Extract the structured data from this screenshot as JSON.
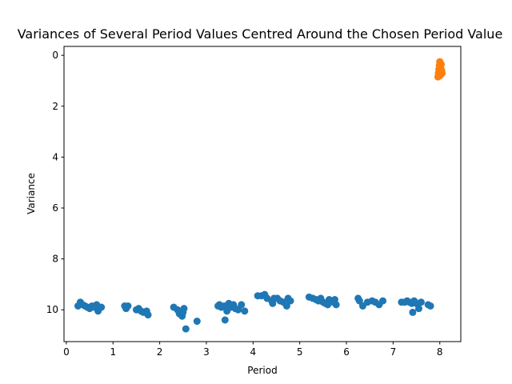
{
  "chart_data": {
    "type": "scatter",
    "title": "Variances of Several Period Values Centred Around the Chosen Period Value",
    "xlabel": "Period",
    "ylabel": "Variance",
    "xlim": [
      -0.05,
      8.45
    ],
    "ylim": [
      11.25,
      -0.35
    ],
    "y_inverted": true,
    "grid": false,
    "legend": "none",
    "xticks": [
      0,
      1,
      2,
      3,
      4,
      5,
      6,
      7,
      8
    ],
    "yticks": [
      0,
      2,
      4,
      6,
      8,
      10
    ],
    "series": [
      {
        "color": "#1f77b4",
        "points": [
          [
            0.25,
            9.85
          ],
          [
            0.3,
            9.7
          ],
          [
            0.35,
            9.8
          ],
          [
            0.4,
            9.85
          ],
          [
            0.45,
            9.9
          ],
          [
            0.5,
            9.95
          ],
          [
            0.55,
            9.85
          ],
          [
            0.6,
            9.9
          ],
          [
            0.65,
            9.8
          ],
          [
            0.68,
            10.05
          ],
          [
            0.75,
            9.9
          ],
          [
            1.25,
            9.85
          ],
          [
            1.28,
            9.95
          ],
          [
            1.32,
            9.85
          ],
          [
            1.5,
            10.0
          ],
          [
            1.55,
            9.95
          ],
          [
            1.6,
            10.05
          ],
          [
            1.65,
            10.1
          ],
          [
            1.72,
            10.05
          ],
          [
            1.75,
            10.2
          ],
          [
            2.3,
            9.9
          ],
          [
            2.38,
            10.0
          ],
          [
            2.42,
            10.15
          ],
          [
            2.48,
            10.25
          ],
          [
            2.5,
            10.1
          ],
          [
            2.52,
            9.95
          ],
          [
            2.56,
            10.75
          ],
          [
            2.8,
            10.45
          ],
          [
            3.25,
            9.85
          ],
          [
            3.28,
            9.8
          ],
          [
            3.32,
            9.9
          ],
          [
            3.38,
            9.85
          ],
          [
            3.4,
            10.4
          ],
          [
            3.44,
            10.05
          ],
          [
            3.48,
            9.75
          ],
          [
            3.52,
            9.9
          ],
          [
            3.58,
            9.8
          ],
          [
            3.62,
            9.95
          ],
          [
            3.68,
            10.0
          ],
          [
            3.75,
            9.8
          ],
          [
            3.82,
            10.05
          ],
          [
            4.1,
            9.45
          ],
          [
            4.18,
            9.45
          ],
          [
            4.25,
            9.4
          ],
          [
            4.3,
            9.55
          ],
          [
            4.4,
            9.65
          ],
          [
            4.42,
            9.75
          ],
          [
            4.45,
            9.55
          ],
          [
            4.52,
            9.55
          ],
          [
            4.58,
            9.65
          ],
          [
            4.65,
            9.7
          ],
          [
            4.72,
            9.85
          ],
          [
            4.75,
            9.55
          ],
          [
            4.8,
            9.65
          ],
          [
            5.2,
            9.5
          ],
          [
            5.28,
            9.55
          ],
          [
            5.35,
            9.6
          ],
          [
            5.4,
            9.65
          ],
          [
            5.45,
            9.55
          ],
          [
            5.5,
            9.7
          ],
          [
            5.55,
            9.75
          ],
          [
            5.6,
            9.8
          ],
          [
            5.63,
            9.6
          ],
          [
            5.68,
            9.65
          ],
          [
            5.72,
            9.7
          ],
          [
            5.75,
            9.6
          ],
          [
            5.78,
            9.8
          ],
          [
            6.25,
            9.55
          ],
          [
            6.28,
            9.65
          ],
          [
            6.35,
            9.85
          ],
          [
            6.45,
            9.7
          ],
          [
            6.55,
            9.65
          ],
          [
            6.62,
            9.7
          ],
          [
            6.7,
            9.8
          ],
          [
            6.78,
            9.65
          ],
          [
            7.18,
            9.7
          ],
          [
            7.25,
            9.7
          ],
          [
            7.3,
            9.65
          ],
          [
            7.35,
            9.7
          ],
          [
            7.4,
            9.75
          ],
          [
            7.42,
            10.1
          ],
          [
            7.45,
            9.65
          ],
          [
            7.5,
            9.75
          ],
          [
            7.55,
            9.95
          ],
          [
            7.6,
            9.7
          ],
          [
            7.75,
            9.8
          ],
          [
            7.8,
            9.85
          ]
        ]
      },
      {
        "color": "#ff7f0e",
        "points": [
          [
            7.96,
            0.85
          ],
          [
            7.97,
            0.7
          ],
          [
            7.98,
            0.55
          ],
          [
            7.99,
            0.4
          ],
          [
            8.0,
            0.25
          ],
          [
            8.0,
            0.8
          ],
          [
            8.01,
            0.65
          ],
          [
            8.02,
            0.5
          ],
          [
            8.03,
            0.35
          ],
          [
            8.03,
            0.75
          ],
          [
            8.04,
            0.6
          ],
          [
            8.05,
            0.7
          ]
        ]
      }
    ]
  }
}
